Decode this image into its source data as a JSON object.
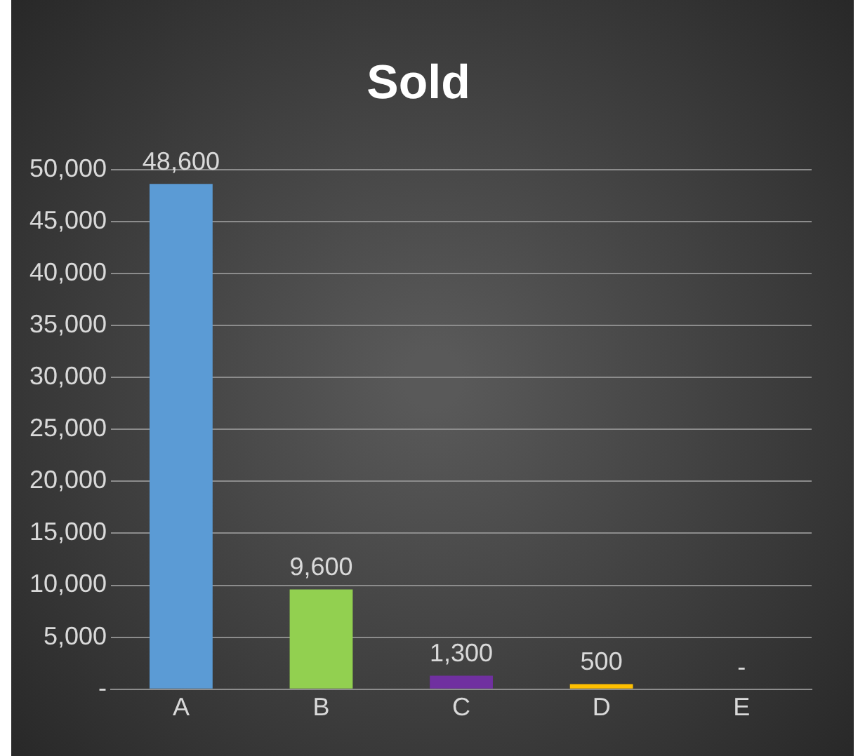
{
  "chart_data": {
    "type": "bar",
    "title": "Sold",
    "categories": [
      "A",
      "B",
      "C",
      "D",
      "E"
    ],
    "values": [
      48600,
      9600,
      1300,
      500,
      0
    ],
    "colors": [
      "#5b9bd5",
      "#92d050",
      "#7030a0",
      "#ffc000",
      "#7f0000"
    ],
    "value_labels": [
      "48,600",
      "9,600",
      "1,300",
      "500",
      "-"
    ],
    "ylim": [
      0,
      50000
    ],
    "yticks": [
      {
        "value": 0,
        "label": "-"
      },
      {
        "value": 5000,
        "label": "5,000"
      },
      {
        "value": 10000,
        "label": "10,000"
      },
      {
        "value": 15000,
        "label": "15,000"
      },
      {
        "value": 20000,
        "label": "20,000"
      },
      {
        "value": 25000,
        "label": "25,000"
      },
      {
        "value": 30000,
        "label": "30,000"
      },
      {
        "value": 35000,
        "label": "35,000"
      },
      {
        "value": 40000,
        "label": "40,000"
      },
      {
        "value": 45000,
        "label": "45,000"
      },
      {
        "value": 50000,
        "label": "50,000"
      }
    ],
    "grid": "y",
    "legend": false
  }
}
